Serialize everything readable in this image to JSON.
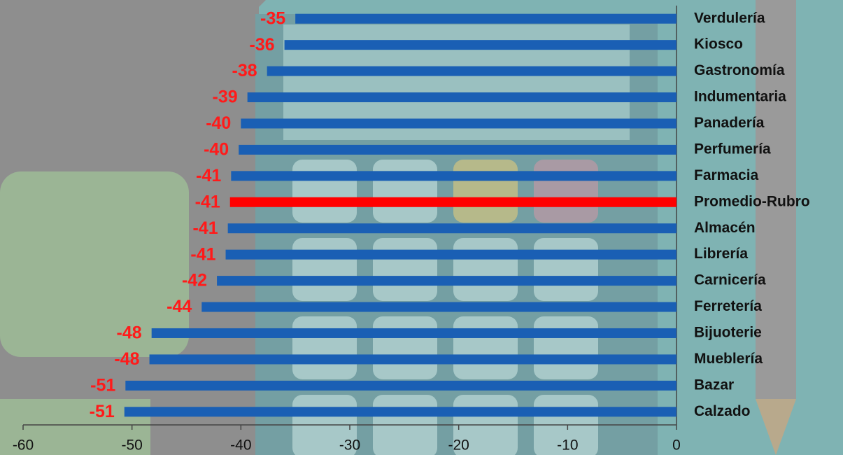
{
  "chart_data": {
    "type": "bar",
    "orientation": "horizontal",
    "categories": [
      "Verdulería",
      "Kiosco",
      "Gastronomía",
      "Indumentaria",
      "Panadería",
      "Perfumería",
      "Farmacia",
      "Promedio-Rubro",
      "Almacén",
      "Librería",
      "Carnicería",
      "Ferretería",
      "Bijuoterie",
      "Mueblería",
      "Bazar",
      "Calzado"
    ],
    "values": [
      -35.0,
      -36.0,
      -37.6,
      -39.4,
      -40.0,
      -40.2,
      -40.9,
      -41.0,
      -41.2,
      -41.4,
      -42.2,
      -43.6,
      -48.2,
      -48.4,
      -50.6,
      -50.7
    ],
    "value_labels": [
      "-35",
      "-36",
      "-38",
      "-39",
      "-40",
      "-40",
      "-41",
      "-41",
      "-41",
      "-41",
      "-42",
      "-44",
      "-48",
      "-48",
      "-51",
      "-51"
    ],
    "colors": [
      "#1a5fb4",
      "#1a5fb4",
      "#1a5fb4",
      "#1a5fb4",
      "#1a5fb4",
      "#1a5fb4",
      "#1a5fb4",
      "#ff0000",
      "#1a5fb4",
      "#1a5fb4",
      "#1a5fb4",
      "#1a5fb4",
      "#1a5fb4",
      "#1a5fb4",
      "#1a5fb4",
      "#1a5fb4"
    ],
    "xlim": [
      -60,
      0
    ],
    "xticks": [
      -60,
      -50,
      -40,
      -30,
      -20,
      -10,
      0
    ]
  }
}
